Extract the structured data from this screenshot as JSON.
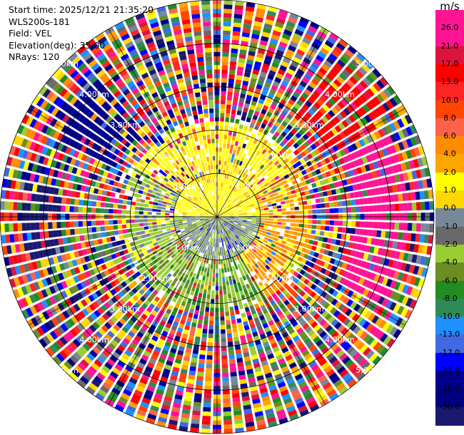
{
  "header": {
    "start_time": "Start time: 2025/12/21 21:35:20",
    "instrument": "WLS200s-181",
    "field": "Field: VEL",
    "elevation": "Elevation(deg): 35.00",
    "nrays": "NRays: 120"
  },
  "colorbar": {
    "unit": "m/s",
    "ticks": [
      "26.0",
      "21.0",
      "17.0",
      "13.0",
      "10.0",
      "8.0",
      "6.0",
      "4.0",
      "2.0",
      "1.0",
      "0.0",
      "-1.0",
      "-2.0",
      "-4.0",
      "-6.0",
      "-8.0",
      "-10.0",
      "-13.0",
      "-17.0",
      "-21.0",
      "-26.0",
      "-30.0"
    ],
    "colors": [
      "#ff1493",
      "#ff1493",
      "#dc143c",
      "#ff0000",
      "#ff2424",
      "#ff4500",
      "#ff6347",
      "#ff8c00",
      "#ffa500",
      "#ffff00",
      "#ffd700",
      "#778899",
      "#696969",
      "#9acd32",
      "#6b8e23",
      "#228b22",
      "#2e8b57",
      "#1e90ff",
      "#4169e1",
      "#0000ff",
      "#00008b",
      "#000080",
      "#191970"
    ]
  },
  "chart_data": {
    "type": "ppi",
    "field": "VEL",
    "units": "m/s",
    "nrays": 120,
    "range_rings_km": [
      "1.0km",
      "2.00km",
      "3.00km",
      "4.00km",
      "5.00km"
    ],
    "ring_labels": [
      {
        "text": "1.0km"
      },
      {
        "text": "2.00km"
      },
      {
        "text": "3.00km"
      },
      {
        "text": "4.00km"
      },
      {
        "text": "5.00km"
      }
    ],
    "spokes_deg": [
      0,
      30,
      60,
      90,
      120,
      150,
      180,
      210,
      240,
      270,
      300,
      330
    ],
    "max_range_km": 5.0
  }
}
